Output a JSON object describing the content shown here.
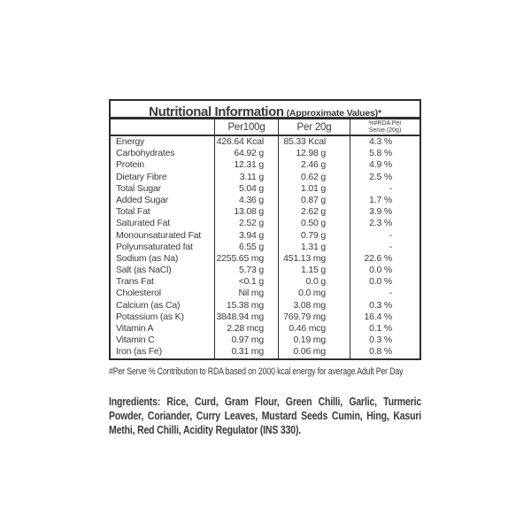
{
  "colors": {
    "text": "#3a3a3a",
    "border": "#2e2e2e",
    "background": "#ffffff"
  },
  "table": {
    "title": "Nutritional Information",
    "title_note": "(Approximate Values)*",
    "columns": {
      "per100g": "Per100g",
      "per20g": "Per 20g",
      "rda_line1": "%#RDA Per",
      "rda_line2": "Serve (20g)"
    },
    "rows": [
      {
        "label": "Energy",
        "per100g": "426.64 Kcal",
        "per20g": "85.33 Kcal",
        "rda": "4.3 %"
      },
      {
        "label": "Carbohydrates",
        "per100g": "64.92 g",
        "per20g": "12.98 g",
        "rda": "5.8 %"
      },
      {
        "label": "Protein",
        "per100g": "12.31 g",
        "per20g": "2.46 g",
        "rda": "4.9 %"
      },
      {
        "label": "Dietary Fibre",
        "per100g": "3.11 g",
        "per20g": "0.62 g",
        "rda": "2.5 %"
      },
      {
        "label": "Total Sugar",
        "per100g": "5.04 g",
        "per20g": "1.01 g",
        "rda": "-"
      },
      {
        "label": "Added Sugar",
        "per100g": "4.36 g",
        "per20g": "0.87 g",
        "rda": "1.7 %"
      },
      {
        "label": "Total Fat",
        "per100g": "13.08 g",
        "per20g": "2.62 g",
        "rda": "3.9 %"
      },
      {
        "label": "Saturated Fat",
        "per100g": "2.52 g",
        "per20g": "0.50 g",
        "rda": "2.3 %"
      },
      {
        "label": "Monounsaturated Fat",
        "per100g": "3.94 g",
        "per20g": "0.79 g",
        "rda": "-"
      },
      {
        "label": "Polyunsaturated fat",
        "per100g": "6.55 g",
        "per20g": "1.31 g",
        "rda": "-"
      },
      {
        "label": "Sodium (as Na)",
        "per100g": "2255.65 mg",
        "per20g": "451.13 mg",
        "rda": "22.6 %"
      },
      {
        "label": "Salt (as NaCl)",
        "per100g": "5.73 g",
        "per20g": "1.15 g",
        "rda": "0.0 %"
      },
      {
        "label": "Trans Fat",
        "per100g": "<0.1 g",
        "per20g": "0.0 g",
        "rda": "0.0 %"
      },
      {
        "label": "Cholesterol",
        "per100g": "Nil mg",
        "per20g": "0.0 mg",
        "rda": "-"
      },
      {
        "label": "Calcium (as Ca)",
        "per100g": "15.38 mg",
        "per20g": "3.08 mg",
        "rda": "0.3 %"
      },
      {
        "label": "Potassium (as K)",
        "per100g": "3848.94 mg",
        "per20g": "769.79 mg",
        "rda": "16.4 %"
      },
      {
        "label": "Vitamin A",
        "per100g": "2.28 mcg",
        "per20g": "0.46 mcg",
        "rda": "0.1 %"
      },
      {
        "label": "Vitamin C",
        "per100g": "0.97 mg",
        "per20g": "0.19 mg",
        "rda": "0.3 %"
      },
      {
        "label": "Iron (as Fe)",
        "per100g": "0.31 mg",
        "per20g": "0.06 mg",
        "rda": "0.8 %"
      }
    ]
  },
  "footnote": "#Per Serve % Contribution to RDA based on 2000 kcal energy for average Adult Per Day",
  "ingredients": {
    "label": "Ingredients:",
    "text": " Rice, Curd, Gram Flour, Green Chilli, Garlic, Turmeric Powder, Coriander, Curry Leaves, Mustard Seeds Cumin, Hing, Kasuri Methi, Red Chilli, Acidity Regulator (INS 330)."
  }
}
